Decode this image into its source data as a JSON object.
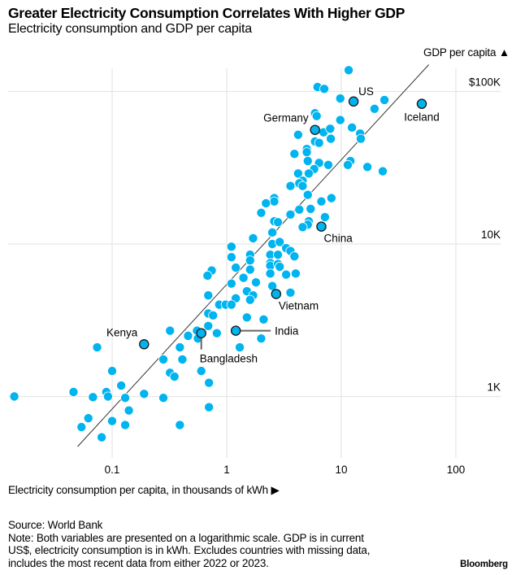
{
  "header": {
    "title": "Greater Electricity Consumption Correlates With Higher GDP",
    "subtitle": "Electricity consumption and GDP per capita"
  },
  "footer": {
    "source": "Source: World Bank",
    "note_lines": [
      "Note: Both variables are presented on a logarithmic scale. GDP is in current",
      "US$, electricity consumption is in kWh. Excludes countries with missing data,",
      "includes the most recent data from either 2022 or 2023."
    ],
    "brand": "Bloomberg"
  },
  "colors": {
    "point": "#00b4f0",
    "highlight_stroke": "#1a1a1a",
    "grid": "#e6e6e6",
    "trend": "#333333"
  },
  "chart_data": {
    "type": "scatter",
    "title": "Greater Electricity Consumption Correlates With Higher GDP",
    "subtitle": "Electricity consumption and GDP per capita",
    "xlabel": "Electricity consumption per capita, in thousands of kWh ▶",
    "ylabel": "GDP per capita ▲",
    "x_scale": "log",
    "y_scale": "log",
    "xlim": [
      0.013,
      200
    ],
    "ylim": [
      450,
      140000
    ],
    "x_ticks": [
      {
        "value": 0.1,
        "label": "0.1"
      },
      {
        "value": 1,
        "label": "1"
      },
      {
        "value": 10,
        "label": "10"
      },
      {
        "value": 100,
        "label": "100"
      }
    ],
    "y_ticks": [
      {
        "value": 1000,
        "label": "1K"
      },
      {
        "value": 10000,
        "label": "10K"
      },
      {
        "value": 100000,
        "label": "$100K"
      }
    ],
    "grid": true,
    "y_axis_side": "right",
    "trendline": {
      "x": [
        0.05,
        58
      ],
      "y": [
        470,
        150000
      ]
    },
    "highlighted": [
      {
        "name": "US",
        "x": 12.8,
        "y": 86000,
        "label_pos": "top-right"
      },
      {
        "name": "Iceland",
        "x": 50.4,
        "y": 83000,
        "label_pos": "below"
      },
      {
        "name": "Germany",
        "x": 5.9,
        "y": 56000,
        "label_pos": "top-left"
      },
      {
        "name": "China",
        "x": 6.7,
        "y": 13000,
        "label_pos": "below-right"
      },
      {
        "name": "Vietnam",
        "x": 2.7,
        "y": 4700,
        "label_pos": "below-right"
      },
      {
        "name": "India",
        "x": 1.2,
        "y": 2700,
        "label_pos": "right-leader"
      },
      {
        "name": "Bangladesh",
        "x": 0.6,
        "y": 2600,
        "label_pos": "below-leader"
      },
      {
        "name": "Kenya",
        "x": 0.19,
        "y": 2200,
        "label_pos": "top-left"
      }
    ],
    "points": [
      [
        11.6,
        138000
      ],
      [
        6.2,
        107000
      ],
      [
        7.1,
        104000
      ],
      [
        9.8,
        90000
      ],
      [
        23.8,
        88000
      ],
      [
        19.5,
        77000
      ],
      [
        5.9,
        72000
      ],
      [
        6.1,
        69000
      ],
      [
        9.8,
        65000
      ],
      [
        4.2,
        52000
      ],
      [
        7.0,
        54000
      ],
      [
        8.0,
        57000
      ],
      [
        12.4,
        58000
      ],
      [
        14.6,
        53000
      ],
      [
        14.8,
        49000
      ],
      [
        5.9,
        47000
      ],
      [
        6.4,
        46000
      ],
      [
        8.1,
        49000
      ],
      [
        5.0,
        42000
      ],
      [
        5.0,
        40000
      ],
      [
        3.9,
        39000
      ],
      [
        5.1,
        35000
      ],
      [
        6.4,
        34000
      ],
      [
        7.7,
        33000
      ],
      [
        5.8,
        31000
      ],
      [
        12.0,
        35000
      ],
      [
        11.4,
        33000
      ],
      [
        16.9,
        32000
      ],
      [
        23.0,
        30000
      ],
      [
        4.2,
        29000
      ],
      [
        5.2,
        29000
      ],
      [
        4.6,
        26000
      ],
      [
        4.3,
        25000
      ],
      [
        4.6,
        24000
      ],
      [
        3.6,
        24000
      ],
      [
        5.1,
        21000
      ],
      [
        2.6,
        20000
      ],
      [
        2.6,
        19000
      ],
      [
        2.2,
        18500
      ],
      [
        6.7,
        19000
      ],
      [
        8.2,
        20000
      ],
      [
        5.4,
        17000
      ],
      [
        4.3,
        16800
      ],
      [
        3.6,
        15600
      ],
      [
        2.0,
        16000
      ],
      [
        7.2,
        15000
      ],
      [
        2.6,
        14100
      ],
      [
        2.8,
        13900
      ],
      [
        5.2,
        14100
      ],
      [
        5.1,
        13400
      ],
      [
        4.6,
        12900
      ],
      [
        2.5,
        11900
      ],
      [
        1.7,
        10900
      ],
      [
        1.1,
        9600
      ],
      [
        2.5,
        10000
      ],
      [
        2.9,
        10300
      ],
      [
        3.3,
        9400
      ],
      [
        3.6,
        9000
      ],
      [
        3.9,
        8300
      ],
      [
        1.1,
        8200
      ],
      [
        1.6,
        8500
      ],
      [
        1.6,
        7800
      ],
      [
        2.4,
        8500
      ],
      [
        2.8,
        8500
      ],
      [
        2.4,
        7500
      ],
      [
        2.4,
        7200
      ],
      [
        2.8,
        7400
      ],
      [
        2.9,
        7100
      ],
      [
        1.2,
        7000
      ],
      [
        1.6,
        6800
      ],
      [
        0.74,
        6700
      ],
      [
        0.68,
        6200
      ],
      [
        2.4,
        6400
      ],
      [
        3.3,
        6300
      ],
      [
        4.0,
        6400
      ],
      [
        1.4,
        6000
      ],
      [
        1.1,
        5500
      ],
      [
        1.8,
        5600
      ],
      [
        2.5,
        5300
      ],
      [
        0.69,
        4600
      ],
      [
        1.5,
        4900
      ],
      [
        1.7,
        4600
      ],
      [
        1.6,
        4300
      ],
      [
        1.2,
        4400
      ],
      [
        3.6,
        4800
      ],
      [
        0.86,
        4000
      ],
      [
        0.98,
        4000
      ],
      [
        1.1,
        4000
      ],
      [
        0.69,
        3500
      ],
      [
        0.76,
        3400
      ],
      [
        1.5,
        3300
      ],
      [
        2.1,
        3200
      ],
      [
        0.32,
        2700
      ],
      [
        0.69,
        2900
      ],
      [
        0.82,
        2600
      ],
      [
        0.55,
        2700
      ],
      [
        0.46,
        2500
      ],
      [
        0.56,
        2400
      ],
      [
        2.0,
        2400
      ],
      [
        0.074,
        2100
      ],
      [
        0.39,
        2100
      ],
      [
        1.3,
        2100
      ],
      [
        0.28,
        1750
      ],
      [
        0.41,
        1750
      ],
      [
        0.1,
        1470
      ],
      [
        0.32,
        1430
      ],
      [
        0.35,
        1350
      ],
      [
        0.6,
        1470
      ],
      [
        0.7,
        1230
      ],
      [
        0.12,
        1180
      ],
      [
        0.014,
        1000
      ],
      [
        0.046,
        1070
      ],
      [
        0.089,
        1070
      ],
      [
        0.092,
        1000
      ],
      [
        0.068,
        990
      ],
      [
        0.13,
        980
      ],
      [
        0.19,
        1040
      ],
      [
        0.28,
        980
      ],
      [
        0.7,
        850
      ],
      [
        0.14,
        810
      ],
      [
        0.062,
        720
      ],
      [
        0.1,
        690
      ],
      [
        0.054,
        630
      ],
      [
        0.13,
        650
      ],
      [
        0.39,
        650
      ],
      [
        0.081,
        540
      ]
    ]
  }
}
